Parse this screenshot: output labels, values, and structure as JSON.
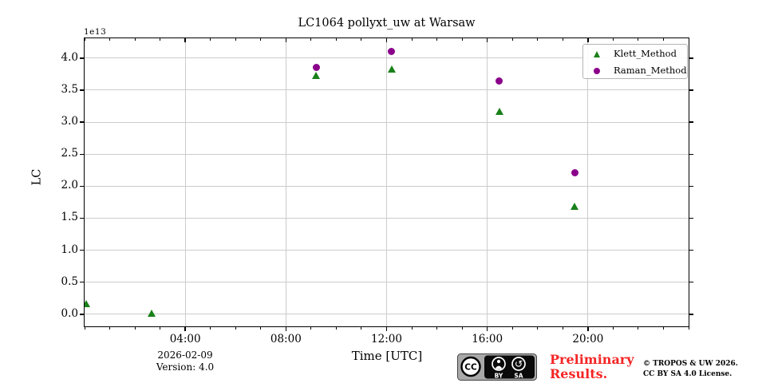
{
  "chart_data": {
    "type": "scatter",
    "title": "LC1064 pollyxt_uw at Warsaw",
    "xlabel": "Time [UTC]",
    "ylabel": "LC",
    "offset_text": "1e13",
    "value_scale": "1e13",
    "grid": true,
    "legend_position": "upper right",
    "xlim_hours": [
      0,
      24
    ],
    "ylim": [
      -0.19,
      4.31
    ],
    "x_major_ticks": [
      {
        "hour": 4,
        "label": "04:00"
      },
      {
        "hour": 8,
        "label": "08:00"
      },
      {
        "hour": 12,
        "label": "12:00"
      },
      {
        "hour": 16,
        "label": "16:00"
      },
      {
        "hour": 20,
        "label": "20:00"
      }
    ],
    "x_minor_tick_hours": 1,
    "y_ticks": [
      {
        "value": 0.0,
        "label": "0.0"
      },
      {
        "value": 0.5,
        "label": "0.5"
      },
      {
        "value": 1.0,
        "label": "1.0"
      },
      {
        "value": 1.5,
        "label": "1.5"
      },
      {
        "value": 2.0,
        "label": "2.0"
      },
      {
        "value": 2.5,
        "label": "2.5"
      },
      {
        "value": 3.0,
        "label": "3.0"
      },
      {
        "value": 3.5,
        "label": "3.5"
      },
      {
        "value": 4.0,
        "label": "4.0"
      }
    ],
    "series": [
      {
        "name": "Klett_Method",
        "marker": "triangle",
        "color": "#1a801a",
        "points": [
          {
            "hour": 0.05,
            "value_1e13": 0.17
          },
          {
            "hour": 2.65,
            "value_1e13": 0.01
          },
          {
            "hour": 9.2,
            "value_1e13": 3.73
          },
          {
            "hour": 12.2,
            "value_1e13": 3.83
          },
          {
            "hour": 16.48,
            "value_1e13": 3.17
          },
          {
            "hour": 19.48,
            "value_1e13": 1.69
          }
        ]
      },
      {
        "name": "Raman_Method",
        "marker": "circle",
        "color": "#8b008b",
        "points": [
          {
            "hour": 9.2,
            "value_1e13": 3.86
          },
          {
            "hour": 12.2,
            "value_1e13": 4.11
          },
          {
            "hour": 16.48,
            "value_1e13": 3.64
          },
          {
            "hour": 19.48,
            "value_1e13": 2.21
          }
        ]
      }
    ]
  },
  "footer": {
    "date": "2026-02-09",
    "version": "Version: 4.0",
    "preliminary": "Preliminary Results.",
    "copyright_line1": "© TROPOS & UW 2026.",
    "copyright_line2": "CC BY SA 4.0 License.",
    "cc_badge": {
      "cc": "CC",
      "by": "BY",
      "sa": "SA"
    }
  },
  "colors": {
    "grid": "#cccccc",
    "spine": "#000000",
    "klett_green": "#1a801a",
    "raman_purple": "#8b008b",
    "preliminary_red": "#f42525",
    "badge_gray": "#a9a9a9"
  }
}
